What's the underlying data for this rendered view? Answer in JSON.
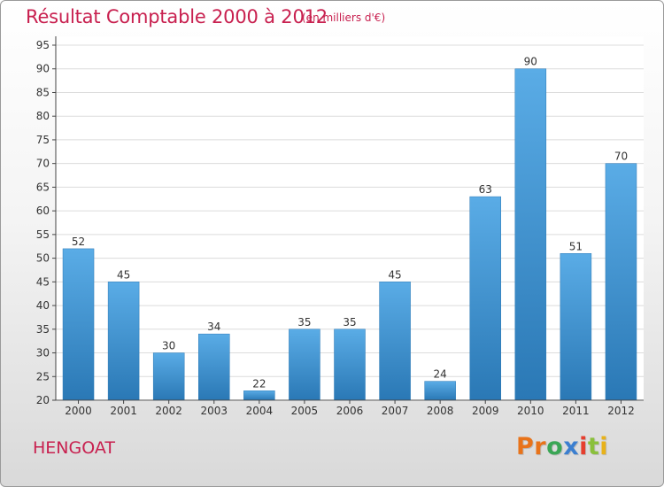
{
  "header": {
    "title": "Résultat Comptable 2000 à 2012",
    "subtitle": "(en milliers d'€)"
  },
  "commune": "HENGOAT",
  "logo": {
    "text": "Proxiti",
    "letters": [
      "P",
      "r",
      "o",
      "x",
      "i",
      "t",
      "i"
    ],
    "colors": [
      "#e8731a",
      "#e8731a",
      "#3aa655",
      "#3b7fd0",
      "#e63e2e",
      "#8ac03c",
      "#e8b21a"
    ]
  },
  "chart_data": {
    "type": "bar",
    "categories": [
      "2000",
      "2001",
      "2002",
      "2003",
      "2004",
      "2005",
      "2006",
      "2007",
      "2008",
      "2009",
      "2010",
      "2011",
      "2012"
    ],
    "values": [
      52,
      45,
      30,
      34,
      22,
      35,
      35,
      45,
      24,
      63,
      90,
      51,
      70
    ],
    "data_labels": [
      "52",
      "45",
      "30",
      "34",
      "22",
      "35",
      "35",
      "45",
      "24",
      "63",
      "90",
      "51",
      "70"
    ],
    "ylim": [
      20,
      95
    ],
    "yticks": [
      20,
      25,
      30,
      35,
      40,
      45,
      50,
      55,
      60,
      65,
      70,
      75,
      80,
      85,
      90,
      95
    ],
    "grid": true,
    "colors": {
      "bar_top": "#5aace6",
      "bar_bottom": "#2a78b5",
      "grid": "#dcdcdc",
      "axis": "#444444",
      "text": "#333333"
    }
  }
}
